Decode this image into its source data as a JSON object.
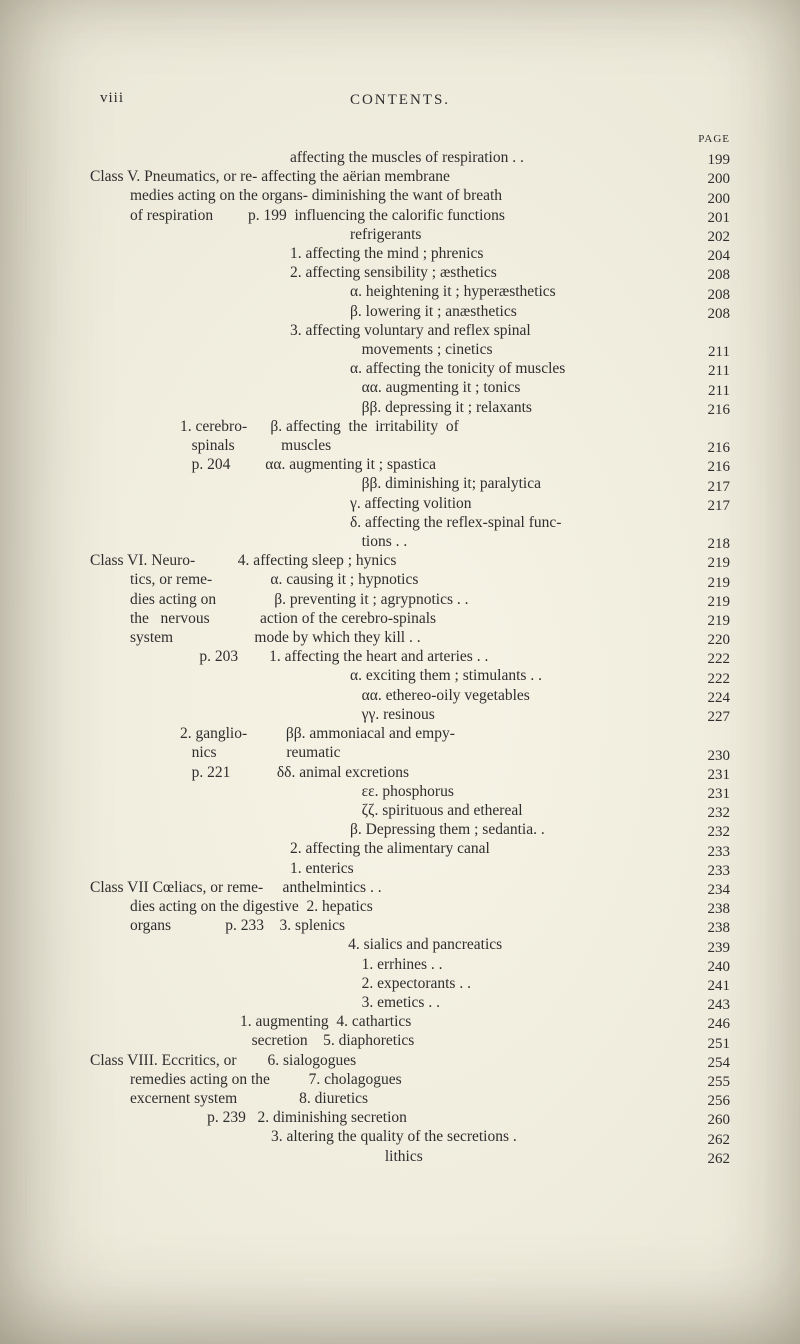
{
  "page": {
    "roman": "viii",
    "runningHead": "CONTENTS.",
    "pageLabel": "PAGE"
  },
  "colors": {
    "text": "#2e2e2e",
    "paper_center": "#f5f2e4",
    "paper_edge": "#d6d2bf"
  },
  "typography": {
    "body_fontsize": 15.5,
    "line_height": 19.2,
    "header_fontsize": 15
  },
  "lines": [
    {
      "cls": "i5",
      "t": "affecting the muscles of respiration . .",
      "pg": "199"
    },
    {
      "cls": "i1",
      "t": "Class V. Pneumatics, or re- affecting the aërian membrane",
      "pg": "200"
    },
    {
      "cls": "i2",
      "t": "medies acting on the organs- diminishing the want of breath",
      "pg": "200"
    },
    {
      "cls": "i2",
      "t": "of respiration         p. 199  influencing the calorific functions",
      "pg": "201"
    },
    {
      "cls": "i6",
      "t": "refrigerants",
      "pg": "202"
    },
    {
      "cls": "i5",
      "t": "1. affecting the mind ; phrenics",
      "pg": "204"
    },
    {
      "cls": "i5",
      "t": "2. affecting sensibility ; æsthetics",
      "pg": "208"
    },
    {
      "cls": "i6",
      "t": "α. heightening it ; hyperæsthetics",
      "pg": "208"
    },
    {
      "cls": "i6",
      "t": "β. lowering it ; anæsthetics",
      "pg": "208"
    },
    {
      "cls": "i5",
      "t": "3. affecting voluntary and reflex spinal",
      "pg": ""
    },
    {
      "cls": "i6",
      "t": "   movements ; cinetics",
      "pg": "211"
    },
    {
      "cls": "i6",
      "t": "α. affecting the tonicity of muscles",
      "pg": "211"
    },
    {
      "cls": "i6",
      "t": "   αα. augmenting it ; tonics",
      "pg": "211"
    },
    {
      "cls": "i6",
      "t": "   ββ. depressing it ; relaxants",
      "pg": "216"
    },
    {
      "cls": "i3",
      "t": "1. cerebro-      β. affecting  the  irritability  of",
      "pg": ""
    },
    {
      "cls": "i3",
      "t": "   spinals            muscles",
      "pg": "216"
    },
    {
      "cls": "i3",
      "t": "   p. 204         αα. augmenting it ; spastica",
      "pg": "216"
    },
    {
      "cls": "i6",
      "t": "   ββ. diminishing it; paralytica",
      "pg": "217"
    },
    {
      "cls": "i6",
      "t": "γ. affecting volition",
      "pg": "217"
    },
    {
      "cls": "i6",
      "t": "δ. affecting the reflex-spinal func-",
      "pg": ""
    },
    {
      "cls": "i6",
      "t": "   tions . .",
      "pg": "218"
    },
    {
      "cls": "i1",
      "t": "Class VI. Neuro-           4. affecting sleep ; hynics",
      "pg": "219"
    },
    {
      "cls": "i2",
      "t": "tics, or reme-               α. causing it ; hypnotics",
      "pg": "219"
    },
    {
      "cls": "i2",
      "t": "dies acting on               β. preventing it ; agrypnotics . .",
      "pg": "219"
    },
    {
      "cls": "i2",
      "t": "the   nervous             action of the cerebro-spinals",
      "pg": "219"
    },
    {
      "cls": "i2",
      "t": "system                     mode by which they kill . .",
      "pg": "220"
    },
    {
      "cls": "i3",
      "t": "     p. 203        1. affecting the heart and arteries . .",
      "pg": "222"
    },
    {
      "cls": "i6",
      "t": "α. exciting them ; stimulants . .",
      "pg": "222"
    },
    {
      "cls": "i6",
      "t": "   αα. ethereo-oily vegetables",
      "pg": "224"
    },
    {
      "cls": "i6",
      "t": "   γγ. resinous",
      "pg": "227"
    },
    {
      "cls": "i3",
      "t": "2. ganglio-          ββ. ammoniacal and empy-",
      "pg": ""
    },
    {
      "cls": "i3",
      "t": "   nics                  reumatic",
      "pg": "230"
    },
    {
      "cls": "i3",
      "t": "   p. 221            δδ. animal excretions",
      "pg": "231"
    },
    {
      "cls": "i6",
      "t": "   εε. phosphorus",
      "pg": "231"
    },
    {
      "cls": "i6",
      "t": "   ζζ. spirituous and ethereal",
      "pg": "232"
    },
    {
      "cls": "i6",
      "t": "β. Depressing them ; sedantia. .",
      "pg": "232"
    },
    {
      "cls": "i5",
      "t": "2. affecting the alimentary canal",
      "pg": "233"
    },
    {
      "cls": "i5",
      "t": "1. enterics",
      "pg": "233"
    },
    {
      "cls": "i1",
      "t": "Class VII Cœliacs, or reme-     anthelmintics . .",
      "pg": "234"
    },
    {
      "cls": "i2",
      "t": "dies acting on the digestive  2. hepatics",
      "pg": "238"
    },
    {
      "cls": "i2",
      "t": "organs              p. 233    3. splenics",
      "pg": "238"
    },
    {
      "cls": "i5",
      "t": "               4. sialics and pancreatics",
      "pg": "239"
    },
    {
      "cls": "i6",
      "t": "   1. errhines . .",
      "pg": "240"
    },
    {
      "cls": "i6",
      "t": "   2. expectorants . .",
      "pg": "241"
    },
    {
      "cls": "i6",
      "t": "   3. emetics . .",
      "pg": "243"
    },
    {
      "cls": "i4",
      "t": "1. augmenting  4. cathartics",
      "pg": "246"
    },
    {
      "cls": "i4",
      "t": "   secretion    5. diaphoretics",
      "pg": "251"
    },
    {
      "cls": "i1",
      "t": "Class VIII. Eccritics, or        6. sialogogues",
      "pg": "254"
    },
    {
      "cls": "i2",
      "t": "remedies acting on the          7. cholagogues",
      "pg": "255"
    },
    {
      "cls": "i2",
      "t": "excernent system                8. diuretics",
      "pg": "256"
    },
    {
      "cls": "i3",
      "t": "       p. 239   2. diminishing secretion",
      "pg": "260"
    },
    {
      "cls": "i4",
      "t": "        3. altering the quality of the secretions .",
      "pg": "262"
    },
    {
      "cls": "i6",
      "t": "         lithics",
      "pg": "262"
    }
  ]
}
